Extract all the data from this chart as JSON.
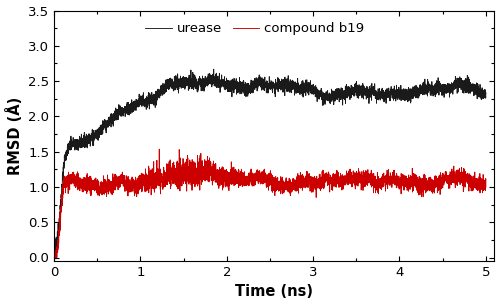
{
  "title": "",
  "xlabel": "Time (ns)",
  "ylabel": "RMSD (Å)",
  "xlim": [
    0,
    5.1
  ],
  "ylim": [
    -0.05,
    3.5
  ],
  "yticks": [
    0.0,
    0.5,
    1.0,
    1.5,
    2.0,
    2.5,
    3.0,
    3.5
  ],
  "xticks": [
    0,
    1,
    2,
    3,
    4,
    5
  ],
  "urease_color": "#1a1a1a",
  "b19_color": "#cc0000",
  "legend_labels": [
    "urease",
    "compound b19"
  ],
  "n_points": 5000
}
